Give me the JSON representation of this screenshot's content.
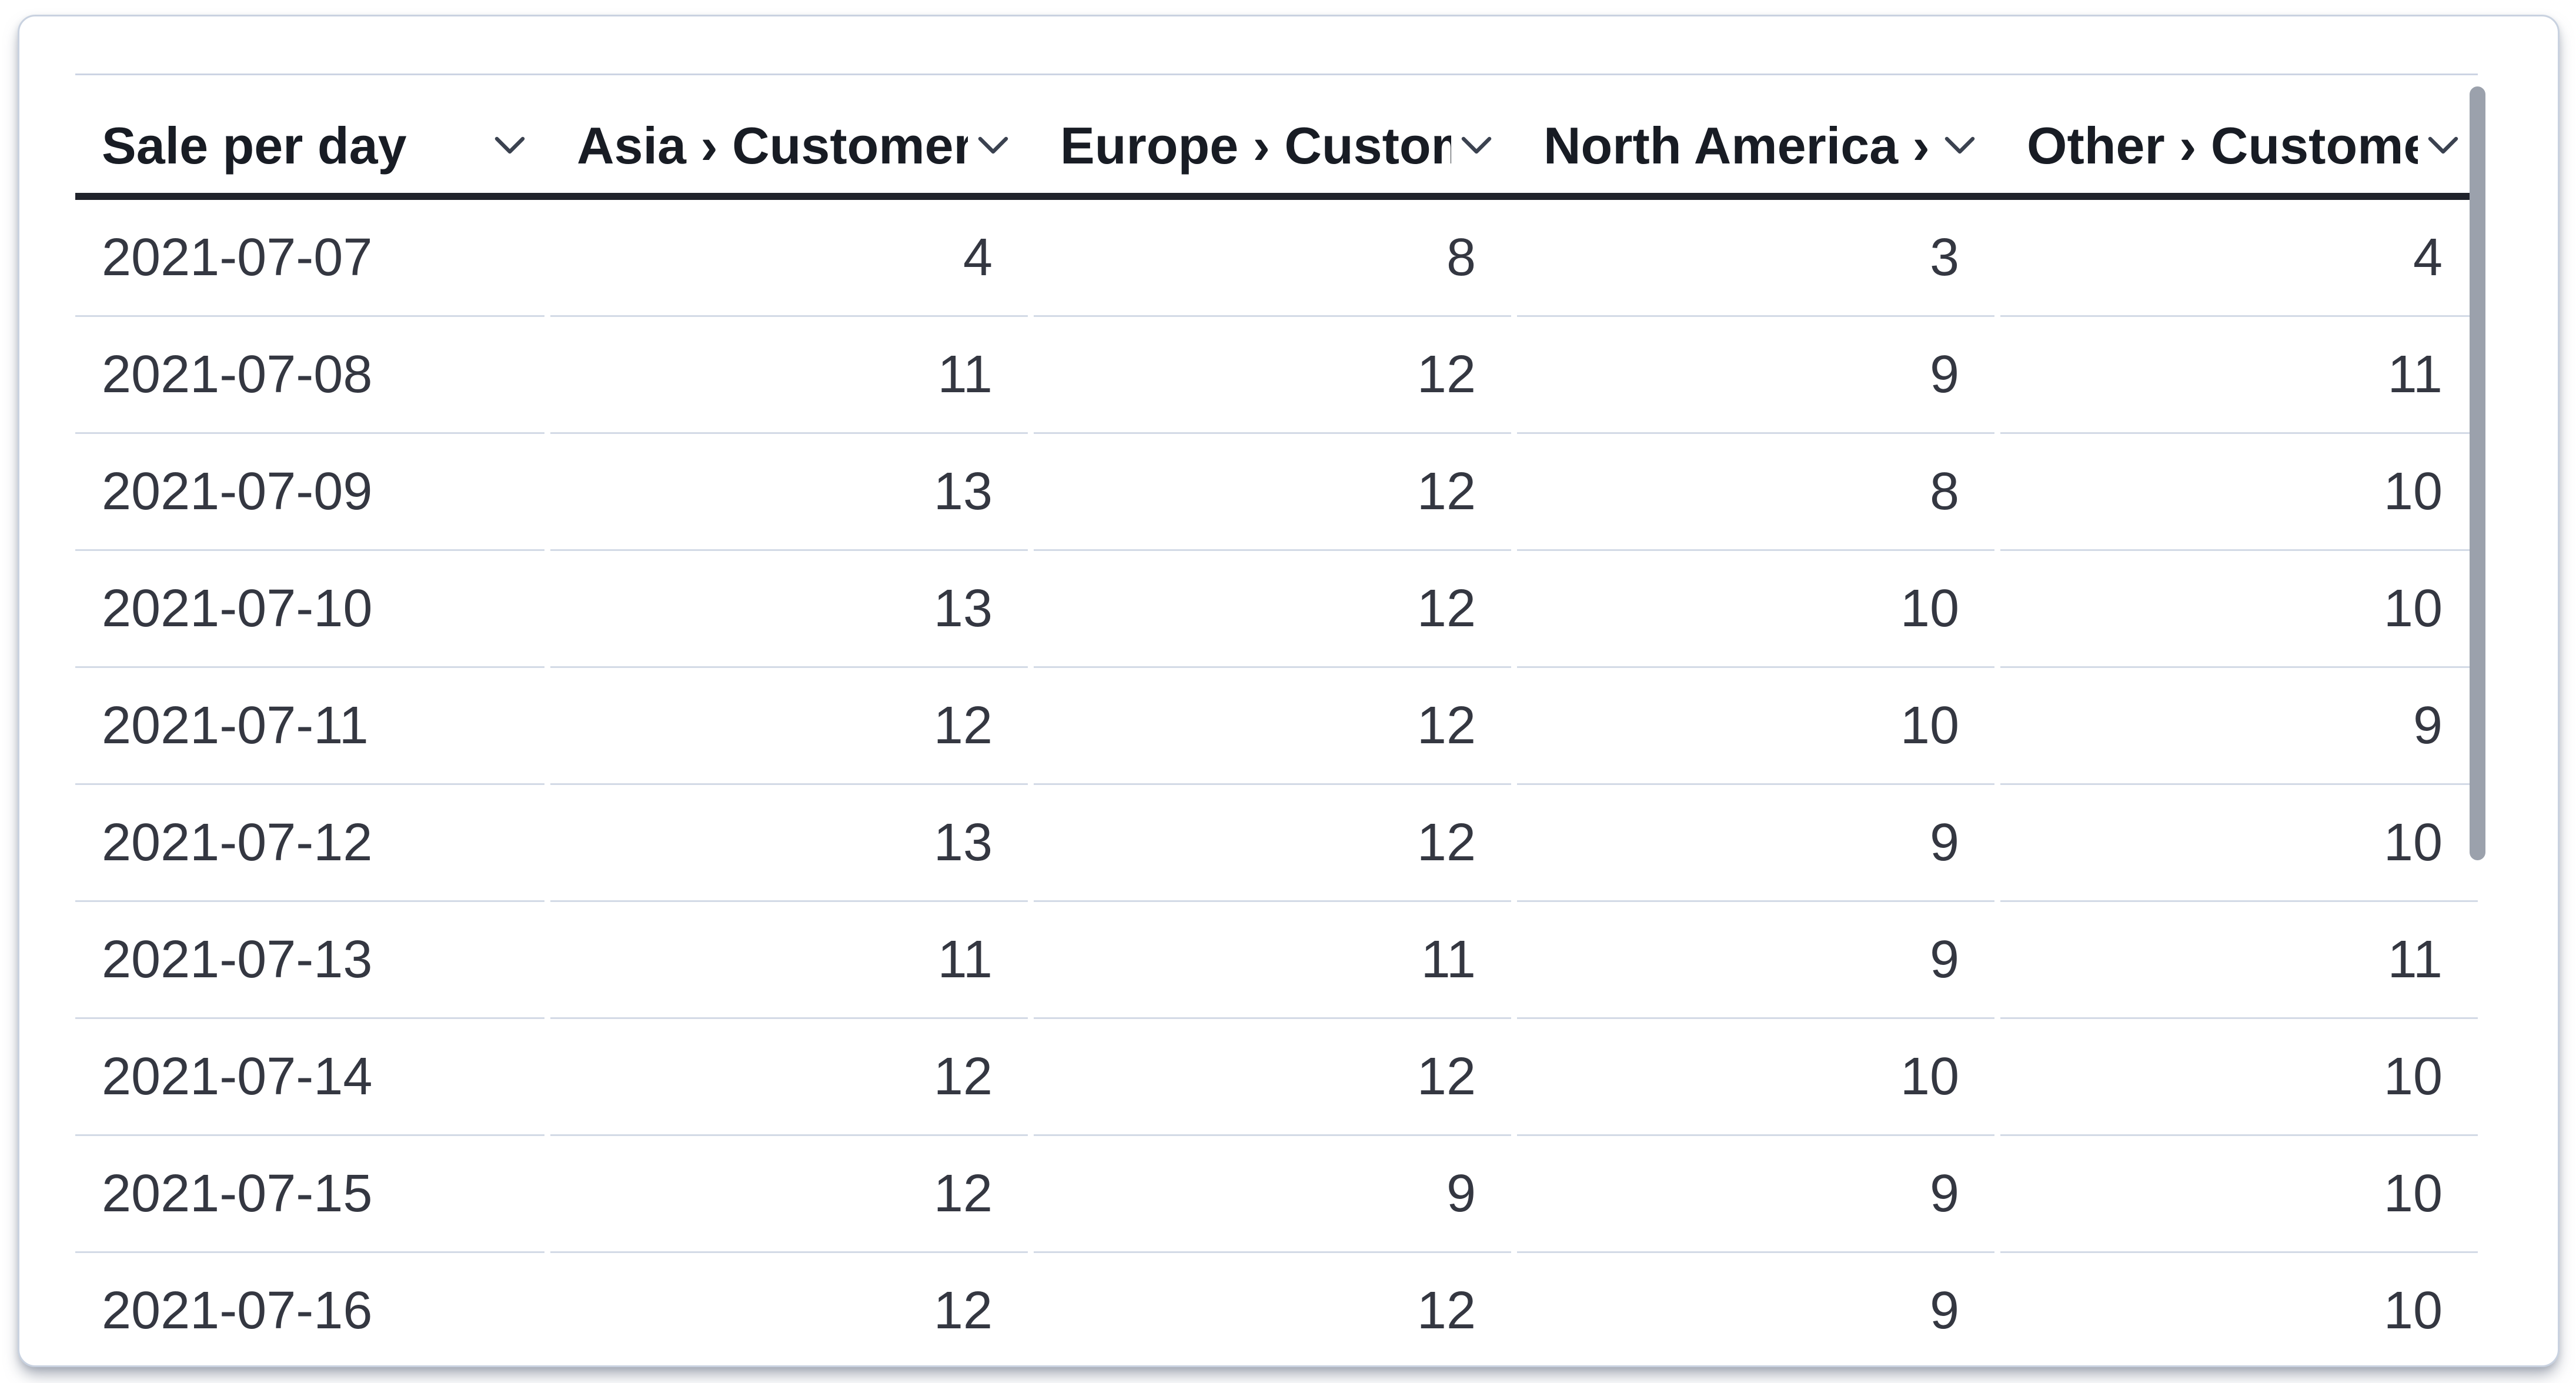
{
  "widget": {
    "type": "datatable-card"
  },
  "table": {
    "columns": [
      {
        "id": "date",
        "label": "Sale per day",
        "align": "left"
      },
      {
        "id": "asia",
        "label": "Asia › Customers",
        "align": "right"
      },
      {
        "id": "europe",
        "label": "Europe › Customers",
        "align": "right"
      },
      {
        "id": "north_america",
        "label": "North America › Customers",
        "align": "right"
      },
      {
        "id": "other",
        "label": "Other › Customers",
        "align": "right"
      }
    ],
    "rows": [
      [
        "2021-07-07",
        4,
        8,
        3,
        4
      ],
      [
        "2021-07-08",
        11,
        12,
        9,
        11
      ],
      [
        "2021-07-09",
        13,
        12,
        8,
        10
      ],
      [
        "2021-07-10",
        13,
        12,
        10,
        10
      ],
      [
        "2021-07-11",
        12,
        12,
        10,
        9
      ],
      [
        "2021-07-12",
        13,
        12,
        9,
        10
      ],
      [
        "2021-07-13",
        11,
        11,
        9,
        11
      ],
      [
        "2021-07-14",
        12,
        12,
        10,
        10
      ],
      [
        "2021-07-15",
        12,
        9,
        9,
        10
      ],
      [
        "2021-07-16",
        12,
        12,
        9,
        10
      ]
    ]
  },
  "icons": {
    "column_menu": "chevron-down"
  },
  "scrollbar": {
    "orientation": "vertical",
    "thumb_visible": true
  },
  "colors": {
    "header_text": "#181c24",
    "body_text": "#343741",
    "header_underline": "#20232b",
    "row_separator": "#d3dae6",
    "card_border": "#c9d2e0",
    "scroll_thumb": "#9ba1ac",
    "background": "#ffffff"
  }
}
